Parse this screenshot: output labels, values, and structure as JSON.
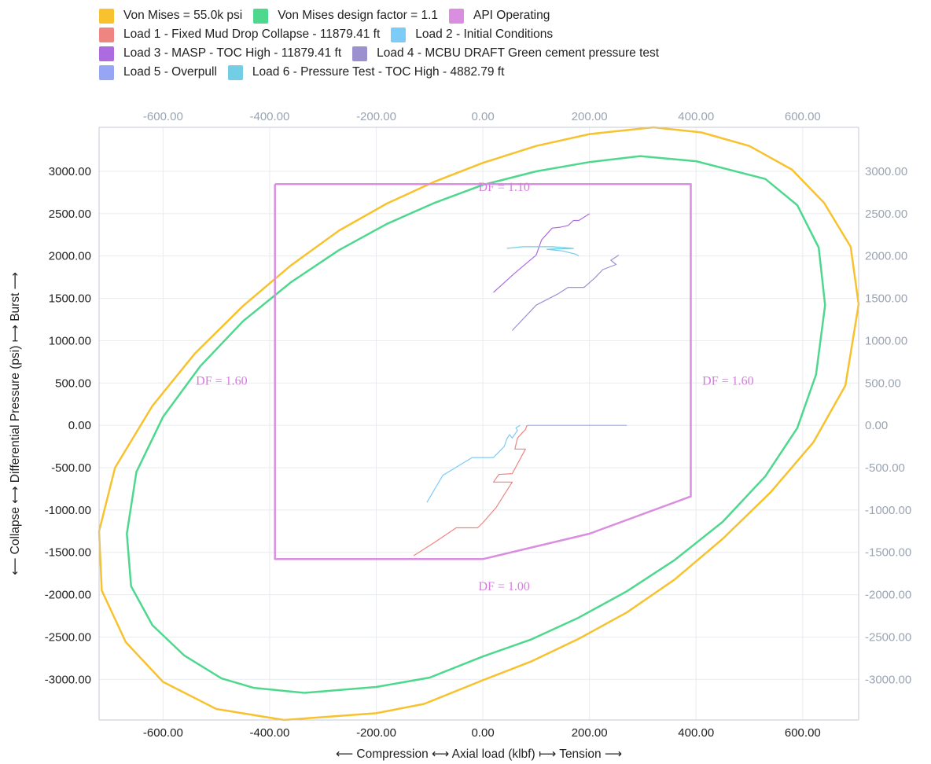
{
  "chart_data": {
    "type": "line",
    "xlabel": "⟵ Compression ⟷ Axial load (klbf) ⟼ Tension ⟶",
    "ylabel": "⟵ Collapse ⟷ Differential Pressure (psi) ⟼ Burst ⟶",
    "xlim": [
      -720,
      705
    ],
    "ylim": [
      -3480,
      3520
    ],
    "x_ticks": [
      -600,
      -400,
      -200,
      0,
      200,
      400,
      600
    ],
    "y_ticks": [
      -3000,
      -2500,
      -2000,
      -1500,
      -1000,
      -500,
      0,
      500,
      1000,
      1500,
      2000,
      2500,
      3000
    ],
    "x_tick_labels": [
      "-600.00",
      "-400.00",
      "-200.00",
      "0.00",
      "200.00",
      "400.00",
      "600.00"
    ],
    "y_tick_labels": [
      "-3000.00",
      "-2500.00",
      "-2000.00",
      "-1500.00",
      "-1000.00",
      "-500.00",
      "0.00",
      "500.00",
      "1000.00",
      "1500.00",
      "2000.00",
      "2500.00",
      "3000.00"
    ],
    "grid": true,
    "legend_position": "top-left",
    "legend": [
      [
        {
          "name": "Von Mises = 55.0k psi",
          "color": "#f8c12e"
        },
        {
          "name": "Von Mises design factor = 1.1",
          "color": "#4ed88d"
        },
        {
          "name": "API Operating",
          "color": "#da8ee0"
        }
      ],
      [
        {
          "name": "Load 1 - Fixed Mud Drop Collapse - 11879.41 ft",
          "color": "#ef8581"
        },
        {
          "name": "Load 2 - Initial Conditions",
          "color": "#7dcbf7"
        }
      ],
      [
        {
          "name": "Load 3 - MASP - TOC High - 11879.41 ft",
          "color": "#ad6be0"
        },
        {
          "name": "Load 4 - MCBU DRAFT Green cement pressure test",
          "color": "#9c90cf"
        }
      ],
      [
        {
          "name": "Load 5 - Overpull",
          "color": "#96a6f4"
        },
        {
          "name": "Load 6 - Pressure Test - TOC High - 4882.79 ft",
          "color": "#72cde5"
        }
      ]
    ],
    "series": [
      {
        "name": "Von Mises = 55.0k psi",
        "color": "#f8c12e",
        "width": 2.5,
        "points": [
          [
            -373,
            -3480
          ],
          [
            -200,
            -3400
          ],
          [
            -110,
            -3290
          ],
          [
            0,
            -3010
          ],
          [
            90,
            -2790
          ],
          [
            180,
            -2520
          ],
          [
            270,
            -2210
          ],
          [
            360,
            -1820
          ],
          [
            450,
            -1340
          ],
          [
            540,
            -790
          ],
          [
            620,
            -200
          ],
          [
            680,
            470
          ],
          [
            705,
            1430
          ],
          [
            690,
            2110
          ],
          [
            640,
            2630
          ],
          [
            580,
            3020
          ],
          [
            500,
            3300
          ],
          [
            410,
            3460
          ],
          [
            320,
            3520
          ],
          [
            200,
            3440
          ],
          [
            100,
            3300
          ],
          [
            0,
            3100
          ],
          [
            -90,
            2880
          ],
          [
            -180,
            2620
          ],
          [
            -270,
            2300
          ],
          [
            -360,
            1890
          ],
          [
            -450,
            1410
          ],
          [
            -540,
            850
          ],
          [
            -620,
            230
          ],
          [
            -690,
            -500
          ],
          [
            -720,
            -1250
          ],
          [
            -715,
            -1950
          ],
          [
            -670,
            -2560
          ],
          [
            -600,
            -3030
          ],
          [
            -500,
            -3350
          ],
          [
            -373,
            -3480
          ]
        ]
      },
      {
        "name": "Von Mises design factor = 1.1",
        "color": "#4ed88d",
        "width": 2.5,
        "points": [
          [
            -335,
            -3160
          ],
          [
            -200,
            -3090
          ],
          [
            -100,
            -2980
          ],
          [
            0,
            -2730
          ],
          [
            90,
            -2530
          ],
          [
            180,
            -2270
          ],
          [
            270,
            -1960
          ],
          [
            360,
            -1590
          ],
          [
            450,
            -1140
          ],
          [
            530,
            -600
          ],
          [
            590,
            -30
          ],
          [
            625,
            600
          ],
          [
            642,
            1420
          ],
          [
            630,
            2100
          ],
          [
            590,
            2600
          ],
          [
            530,
            2910
          ],
          [
            400,
            3120
          ],
          [
            295,
            3180
          ],
          [
            200,
            3110
          ],
          [
            100,
            3000
          ],
          [
            0,
            2840
          ],
          [
            -90,
            2630
          ],
          [
            -180,
            2380
          ],
          [
            -270,
            2070
          ],
          [
            -360,
            1690
          ],
          [
            -450,
            1230
          ],
          [
            -530,
            700
          ],
          [
            -600,
            100
          ],
          [
            -650,
            -550
          ],
          [
            -668,
            -1280
          ],
          [
            -660,
            -1900
          ],
          [
            -620,
            -2360
          ],
          [
            -560,
            -2720
          ],
          [
            -490,
            -2990
          ],
          [
            -430,
            -3100
          ],
          [
            -335,
            -3160
          ]
        ]
      },
      {
        "name": "API Operating",
        "color": "#da8ee0",
        "width": 2.5,
        "points": [
          [
            -390,
            2850
          ],
          [
            390,
            2850
          ],
          [
            390,
            -840
          ],
          [
            200,
            -1280
          ],
          [
            0,
            -1580
          ],
          [
            -390,
            -1580
          ],
          [
            -390,
            2850
          ]
        ]
      },
      {
        "name": "Load 1 - Fixed Mud Drop Collapse - 11879.41 ft",
        "color": "#ef8581",
        "width": 1.2,
        "points": [
          [
            -130,
            -1540
          ],
          [
            -90,
            -1380
          ],
          [
            -50,
            -1210
          ],
          [
            -10,
            -1210
          ],
          [
            0,
            -1150
          ],
          [
            25,
            -970
          ],
          [
            55,
            -670
          ],
          [
            20,
            -670
          ],
          [
            30,
            -580
          ],
          [
            55,
            -570
          ],
          [
            80,
            -280
          ],
          [
            60,
            -280
          ],
          [
            65,
            -150
          ],
          [
            75,
            -80
          ],
          [
            80,
            -50
          ],
          [
            82,
            -10
          ],
          [
            85,
            0
          ]
        ]
      },
      {
        "name": "Load 2 - Initial Conditions",
        "color": "#7dcbf7",
        "width": 1.2,
        "points": [
          [
            -105,
            -910
          ],
          [
            -75,
            -590
          ],
          [
            -20,
            -380
          ],
          [
            20,
            -380
          ],
          [
            40,
            -250
          ],
          [
            45,
            -160
          ],
          [
            50,
            -110
          ],
          [
            55,
            -150
          ],
          [
            65,
            -60
          ],
          [
            62,
            -30
          ],
          [
            70,
            0
          ]
        ]
      },
      {
        "name": "Load 3 - MASP - TOC High - 11879.41 ft",
        "color": "#ad6be0",
        "width": 1.2,
        "points": [
          [
            20,
            1570
          ],
          [
            60,
            1800
          ],
          [
            100,
            2010
          ],
          [
            110,
            2190
          ],
          [
            130,
            2330
          ],
          [
            145,
            2340
          ],
          [
            160,
            2360
          ],
          [
            170,
            2420
          ],
          [
            180,
            2420
          ],
          [
            200,
            2500
          ]
        ]
      },
      {
        "name": "Load 4 - MCBU DRAFT Green cement pressure test",
        "color": "#9c90cf",
        "width": 1.2,
        "points": [
          [
            55,
            1120
          ],
          [
            100,
            1420
          ],
          [
            140,
            1550
          ],
          [
            160,
            1630
          ],
          [
            190,
            1630
          ],
          [
            210,
            1740
          ],
          [
            225,
            1840
          ],
          [
            250,
            1900
          ],
          [
            240,
            1950
          ],
          [
            255,
            2010
          ]
        ]
      },
      {
        "name": "Load 5 - Overpull",
        "color": "#96a6f4",
        "width": 1.2,
        "points": [
          [
            85,
            0
          ],
          [
            270,
            0
          ]
        ]
      },
      {
        "name": "Load 6 - Pressure Test - TOC High - 4882.79 ft",
        "color": "#72cde5",
        "width": 1.2,
        "points": [
          [
            45,
            2090
          ],
          [
            75,
            2110
          ],
          [
            130,
            2110
          ],
          [
            170,
            2090
          ],
          [
            120,
            2080
          ],
          [
            150,
            2060
          ],
          [
            175,
            2020
          ],
          [
            180,
            2000
          ]
        ]
      }
    ],
    "annotations": [
      {
        "text": "DF = 1.10",
        "x": 40,
        "y": 2770
      },
      {
        "text": "DF = 1.60",
        "x": -490,
        "y": 480
      },
      {
        "text": "DF = 1.60",
        "x": 460,
        "y": 480
      },
      {
        "text": "DF = 1.00",
        "x": 40,
        "y": -1950
      }
    ],
    "annotation_color": "#d47ddc"
  }
}
